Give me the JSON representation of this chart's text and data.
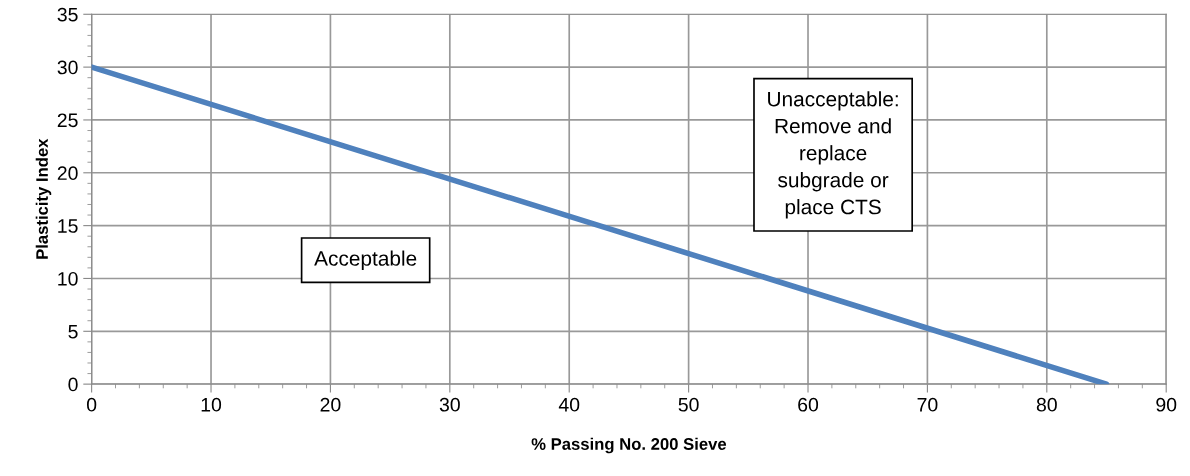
{
  "chart_data": {
    "type": "line",
    "xlabel": "% Passing No. 200 Sieve",
    "ylabel": "Plasticity Index",
    "x": [
      0,
      85
    ],
    "series": [
      {
        "color": "#4f81bd",
        "values": [
          30,
          0
        ]
      }
    ],
    "xlim": [
      0,
      90
    ],
    "xticks": [
      0,
      10,
      20,
      30,
      40,
      50,
      60,
      70,
      80,
      90
    ],
    "ylim": [
      0,
      35
    ],
    "yticks": [
      0,
      5,
      10,
      15,
      20,
      25,
      30,
      35
    ],
    "grid": true,
    "marker": "none",
    "line_style": "solid",
    "legend": false,
    "annotations": [
      "Acceptable",
      "Unacceptable:\nRemove and\nreplace\nsubgrade or\nplace CTS"
    ]
  }
}
